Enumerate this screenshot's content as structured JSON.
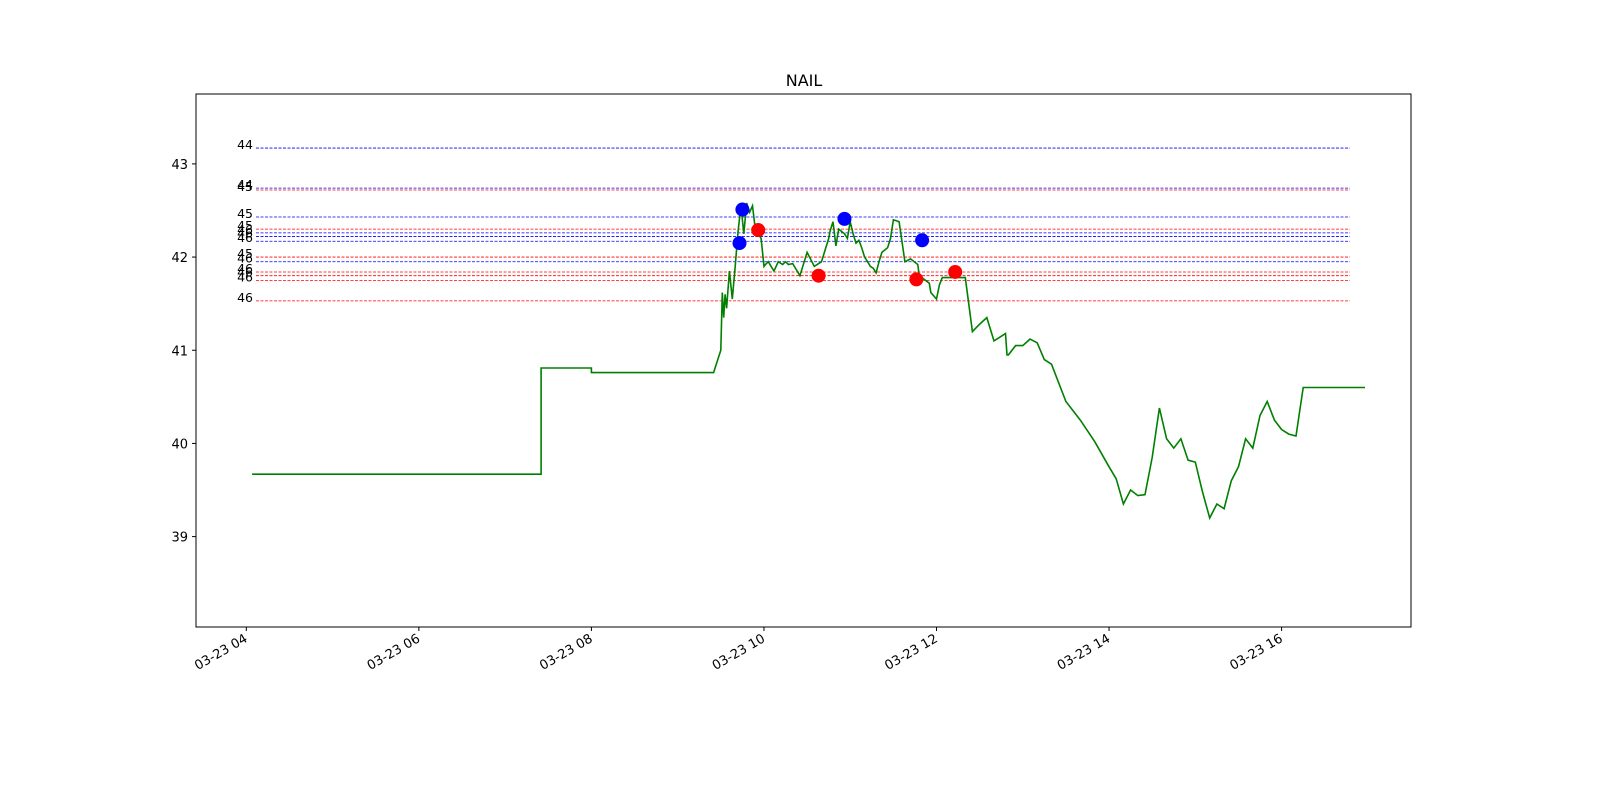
{
  "chart_data": {
    "type": "line",
    "title": "NAIL",
    "xlabel": "",
    "ylabel": "",
    "xlim": [
      "03-23 03:25",
      "03-23 17:30"
    ],
    "ylim": [
      38.03,
      43.75
    ],
    "x_tick_labels": [
      "03-23 04",
      "03-23 06",
      "03-23 08",
      "03-23 10",
      "03-23 12",
      "03-23 14",
      "03-23 16"
    ],
    "x_tick_times": [
      "04:00",
      "06:00",
      "08:00",
      "10:00",
      "12:00",
      "14:00",
      "16:00"
    ],
    "y_ticks": [
      39,
      40,
      41,
      42,
      43
    ],
    "grid": false,
    "legend": "none",
    "colors": {
      "price": "#008000",
      "buy": "#0000ff",
      "sell": "#ff0000",
      "level_blue": "#0000ff",
      "level_red": "#ff0000"
    },
    "series": [
      {
        "type": "line",
        "color": "#008000",
        "x": [
          "04:04",
          "07:25",
          "07:25",
          "08:00",
          "08:00",
          "09:25",
          "09:30",
          "09:31",
          "09:32",
          "09:33",
          "09:34",
          "09:36",
          "09:38",
          "09:40",
          "09:42",
          "09:44",
          "09:46",
          "09:48",
          "09:50",
          "09:52",
          "09:54",
          "09:56",
          "09:58",
          "10:00",
          "10:01",
          "10:03",
          "10:05",
          "10:07",
          "10:10",
          "10:13",
          "10:15",
          "10:17",
          "10:20",
          "10:25",
          "10:30",
          "10:35",
          "10:40",
          "10:45",
          "10:46",
          "10:48",
          "10:50",
          "10:52",
          "10:56",
          "10:58",
          "11:00",
          "11:02",
          "11:04",
          "11:06",
          "11:08",
          "11:10",
          "11:12",
          "11:14",
          "11:16",
          "11:18",
          "11:20",
          "11:22",
          "11:26",
          "11:28",
          "11:30",
          "11:34",
          "11:38",
          "11:42",
          "11:47",
          "11:48",
          "11:55",
          "11:56",
          "12:00",
          "12:02",
          "12:04",
          "12:06",
          "12:08",
          "12:10",
          "12:15",
          "12:20",
          "12:25",
          "12:30",
          "12:35",
          "12:40",
          "12:45",
          "12:48",
          "12:49",
          "12:50",
          "12:55",
          "13:00",
          "13:05",
          "13:10",
          "13:15",
          "13:20",
          "13:30",
          "13:40",
          "13:50",
          "14:00",
          "14:05",
          "14:10",
          "14:15",
          "14:20",
          "14:25",
          "14:30",
          "14:35",
          "14:40",
          "14:45",
          "14:50",
          "14:55",
          "15:00",
          "15:05",
          "15:10",
          "15:15",
          "15:20",
          "15:25",
          "15:30",
          "15:35",
          "15:40",
          "15:45",
          "15:50",
          "15:55",
          "16:00",
          "16:05",
          "16:10",
          "16:15",
          "16:20",
          "16:58"
        ],
        "y": [
          39.67,
          39.67,
          40.81,
          40.81,
          40.76,
          40.76,
          41.0,
          41.62,
          41.35,
          41.6,
          41.45,
          41.85,
          41.55,
          41.9,
          42.28,
          42.55,
          42.25,
          42.58,
          42.48,
          42.55,
          42.3,
          42.25,
          42.2,
          41.9,
          41.92,
          41.95,
          41.9,
          41.85,
          41.95,
          41.92,
          41.95,
          41.92,
          41.93,
          41.8,
          42.05,
          41.9,
          41.95,
          42.2,
          42.28,
          42.38,
          42.12,
          42.3,
          42.25,
          42.2,
          42.38,
          42.25,
          42.15,
          42.18,
          42.1,
          42.0,
          41.95,
          41.9,
          41.88,
          41.83,
          41.95,
          42.05,
          42.1,
          42.2,
          42.4,
          42.38,
          41.95,
          41.98,
          41.92,
          41.8,
          41.72,
          41.62,
          41.55,
          41.7,
          41.78,
          41.78,
          41.78,
          41.78,
          41.78,
          41.78,
          41.2,
          41.28,
          41.35,
          41.1,
          41.15,
          41.18,
          40.95,
          40.95,
          41.05,
          41.05,
          41.12,
          41.08,
          40.9,
          40.85,
          40.45,
          40.25,
          40.02,
          39.75,
          39.62,
          39.35,
          39.5,
          39.44,
          39.45,
          39.85,
          40.38,
          40.05,
          39.95,
          40.05,
          39.82,
          39.8,
          39.48,
          39.2,
          39.35,
          39.3,
          39.6,
          39.75,
          40.05,
          39.95,
          40.3,
          40.45,
          40.25,
          40.15,
          40.1,
          40.08,
          40.6,
          40.6,
          40.6
        ]
      }
    ],
    "buy_markers": [
      {
        "x": "09:43",
        "y": 42.15
      },
      {
        "x": "09:45",
        "y": 42.51
      },
      {
        "x": "10:56",
        "y": 42.41
      },
      {
        "x": "11:50",
        "y": 42.18
      }
    ],
    "sell_markers": [
      {
        "x": "09:56",
        "y": 42.29
      },
      {
        "x": "10:38",
        "y": 41.8
      },
      {
        "x": "11:46",
        "y": 41.76
      },
      {
        "x": "12:13",
        "y": 41.84
      }
    ],
    "levels": [
      {
        "y": 43.17,
        "color": "blue",
        "label": "44"
      },
      {
        "y": 42.74,
        "color": "blue",
        "label": "44"
      },
      {
        "y": 42.72,
        "color": "red",
        "label": "45"
      },
      {
        "y": 42.43,
        "color": "blue",
        "label": "45"
      },
      {
        "y": 42.3,
        "color": "red",
        "label": "45"
      },
      {
        "y": 42.26,
        "color": "blue",
        "label": "46"
      },
      {
        "y": 42.22,
        "color": "blue",
        "label": "46"
      },
      {
        "y": 42.17,
        "color": "blue",
        "label": "46"
      },
      {
        "y": 42.0,
        "color": "red",
        "label": "45"
      },
      {
        "y": 41.95,
        "color": "blue",
        "label": "46"
      },
      {
        "y": 41.84,
        "color": "red",
        "label": "46"
      },
      {
        "y": 41.8,
        "color": "red",
        "label": "46"
      },
      {
        "y": 41.75,
        "color": "red",
        "label": "46"
      },
      {
        "y": 41.53,
        "color": "red",
        "label": "46"
      }
    ]
  }
}
